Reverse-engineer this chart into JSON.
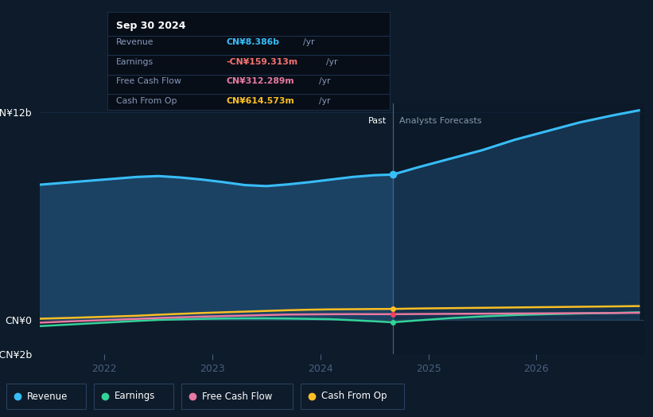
{
  "bg_color": "#0d1b2a",
  "plot_bg_color": "#0d1b2a",
  "tooltip_bg": "#0a0f1a",
  "tooltip_row_bg": "#0d1520",
  "ylabel_top": "CN¥12b",
  "ylabel_bottom": "-CN¥2b",
  "ylabel_zero": "CN¥0",
  "x_labels": [
    "2022",
    "2023",
    "2024",
    "2025",
    "2026"
  ],
  "divider_x": 2024.67,
  "past_label": "Past",
  "forecast_label": "Analysts Forecasts",
  "tooltip": {
    "date": "Sep 30 2024",
    "rows": [
      {
        "label": "Revenue",
        "value": "CN¥8.386b",
        "unit": "/yr",
        "color": "#38bdf8"
      },
      {
        "label": "Earnings",
        "value": "-CN¥159.313m",
        "unit": "/yr",
        "color": "#f87171"
      },
      {
        "label": "Free Cash Flow",
        "value": "CN¥312.289m",
        "unit": "/yr",
        "color": "#e879a0"
      },
      {
        "label": "Cash From Op",
        "value": "CN¥614.573m",
        "unit": "/yr",
        "color": "#fbbf24"
      }
    ]
  },
  "revenue": {
    "color": "#38bdf8",
    "fill_color": "#1e4a6e",
    "past_x": [
      2021.4,
      2021.7,
      2022.0,
      2022.3,
      2022.5,
      2022.7,
      2022.9,
      2023.1,
      2023.3,
      2023.5,
      2023.7,
      2023.9,
      2024.1,
      2024.3,
      2024.5,
      2024.67
    ],
    "past_y": [
      7.8,
      7.95,
      8.1,
      8.25,
      8.3,
      8.22,
      8.1,
      7.95,
      7.78,
      7.72,
      7.82,
      7.95,
      8.1,
      8.25,
      8.35,
      8.386
    ],
    "future_x": [
      2024.67,
      2024.9,
      2025.2,
      2025.5,
      2025.8,
      2026.1,
      2026.4,
      2026.7,
      2026.95
    ],
    "future_y": [
      8.386,
      8.8,
      9.3,
      9.8,
      10.4,
      10.9,
      11.4,
      11.8,
      12.1
    ]
  },
  "earnings": {
    "color": "#34d399",
    "past_x": [
      2021.4,
      2021.7,
      2022.0,
      2022.3,
      2022.5,
      2022.7,
      2022.9,
      2023.1,
      2023.3,
      2023.5,
      2023.7,
      2023.9,
      2024.1,
      2024.3,
      2024.5,
      2024.67
    ],
    "past_y": [
      -0.38,
      -0.28,
      -0.18,
      -0.08,
      -0.02,
      0.01,
      0.04,
      0.06,
      0.07,
      0.07,
      0.06,
      0.04,
      0.02,
      -0.04,
      -0.1,
      -0.159
    ],
    "future_x": [
      2024.67,
      2024.9,
      2025.2,
      2025.5,
      2025.8,
      2026.1,
      2026.4,
      2026.7,
      2026.95
    ],
    "future_y": [
      -0.159,
      -0.05,
      0.08,
      0.18,
      0.26,
      0.31,
      0.35,
      0.38,
      0.42
    ]
  },
  "fcf": {
    "color": "#e879a0",
    "past_x": [
      2021.4,
      2021.7,
      2022.0,
      2022.3,
      2022.5,
      2022.7,
      2022.9,
      2023.1,
      2023.3,
      2023.5,
      2023.7,
      2023.9,
      2024.1,
      2024.3,
      2024.5,
      2024.67
    ],
    "past_y": [
      -0.18,
      -0.1,
      -0.03,
      0.04,
      0.09,
      0.13,
      0.17,
      0.2,
      0.23,
      0.26,
      0.29,
      0.3,
      0.31,
      0.315,
      0.312,
      0.312
    ],
    "future_x": [
      2024.67,
      2024.9,
      2025.2,
      2025.5,
      2025.8,
      2026.1,
      2026.4,
      2026.7,
      2026.95
    ],
    "future_y": [
      0.312,
      0.32,
      0.33,
      0.34,
      0.35,
      0.36,
      0.37,
      0.38,
      0.39
    ]
  },
  "cashfromop": {
    "color": "#fbbf24",
    "past_x": [
      2021.4,
      2021.7,
      2022.0,
      2022.3,
      2022.5,
      2022.7,
      2022.9,
      2023.1,
      2023.3,
      2023.5,
      2023.7,
      2023.9,
      2024.1,
      2024.3,
      2024.5,
      2024.67
    ],
    "past_y": [
      0.05,
      0.1,
      0.16,
      0.22,
      0.28,
      0.33,
      0.38,
      0.42,
      0.46,
      0.5,
      0.54,
      0.57,
      0.59,
      0.6,
      0.61,
      0.6147
    ],
    "future_x": [
      2024.67,
      2024.9,
      2025.2,
      2025.5,
      2025.8,
      2026.1,
      2026.4,
      2026.7,
      2026.95
    ],
    "future_y": [
      0.6147,
      0.64,
      0.66,
      0.68,
      0.7,
      0.72,
      0.74,
      0.76,
      0.78
    ]
  },
  "legend": [
    {
      "label": "Revenue",
      "color": "#38bdf8"
    },
    {
      "label": "Earnings",
      "color": "#34d399"
    },
    {
      "label": "Free Cash Flow",
      "color": "#e879a0"
    },
    {
      "label": "Cash From Op",
      "color": "#fbbf24"
    }
  ],
  "ylim": [
    -2.0,
    12.5
  ],
  "xlim": [
    2021.4,
    2027.0
  ]
}
